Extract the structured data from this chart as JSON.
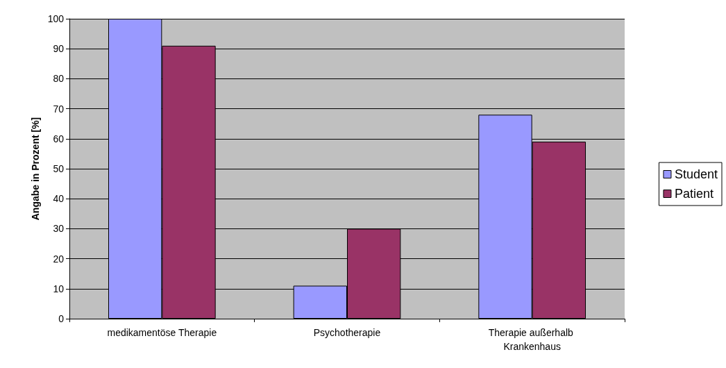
{
  "chart_data": {
    "type": "bar",
    "ylabel": "Angabe in Prozent [%]",
    "categories": [
      "medikamentöse Therapie",
      "Psychotherapie",
      "Therapie außerhalb Krankenhaus"
    ],
    "series": [
      {
        "name": "Student",
        "color": "#9999ff",
        "values": [
          100,
          11,
          68
        ]
      },
      {
        "name": "Patient",
        "color": "#993366",
        "values": [
          91,
          30,
          59
        ]
      }
    ],
    "ylim": [
      0,
      100
    ],
    "yticks": [
      0,
      10,
      20,
      30,
      40,
      50,
      60,
      70,
      80,
      90,
      100
    ],
    "grid": "y",
    "legend": "right"
  }
}
